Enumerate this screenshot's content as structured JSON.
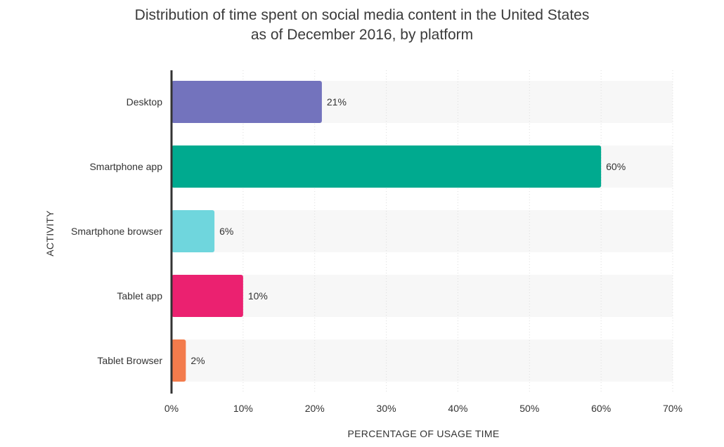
{
  "chart_data": {
    "type": "bar",
    "orientation": "horizontal",
    "title_lines": [
      "Distribution of time spent on social media content in the United States",
      "as of December 2016, by platform"
    ],
    "xlabel": "PERCENTAGE OF USAGE TIME",
    "ylabel": "ACTIVITY",
    "categories": [
      "Desktop",
      "Smartphone app",
      "Smartphone browser",
      "Tablet app",
      "Tablet Browser"
    ],
    "values": [
      21,
      60,
      6,
      10,
      2
    ],
    "value_labels": [
      "21%",
      "60%",
      "6%",
      "10%",
      "2%"
    ],
    "colors": [
      "#7373bd",
      "#00aa8f",
      "#6fd6dd",
      "#eb2170",
      "#f37b4c"
    ],
    "xlim": [
      0,
      70
    ],
    "x_ticks": [
      0,
      10,
      20,
      30,
      40,
      50,
      60,
      70
    ],
    "x_tick_labels": [
      "0%",
      "10%",
      "20%",
      "30%",
      "40%",
      "50%",
      "60%",
      "70%"
    ],
    "grid": true,
    "legend": false,
    "band_color": "#f7f7f7",
    "grid_color": "#dddddd",
    "axis_color": "#333333"
  }
}
